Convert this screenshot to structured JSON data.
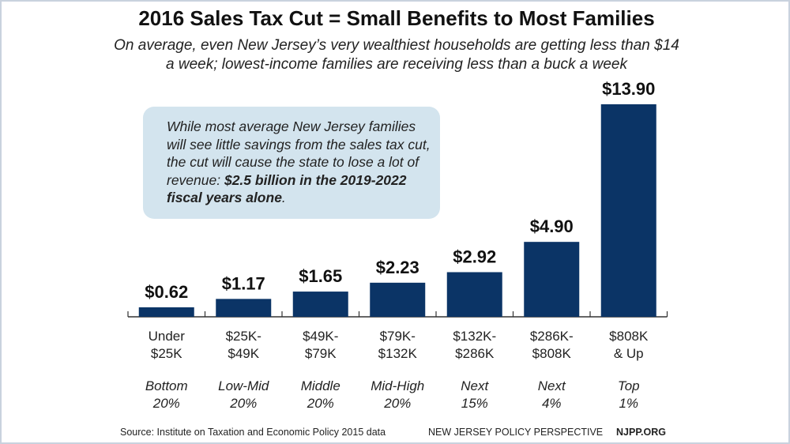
{
  "chart_data": {
    "type": "bar",
    "title": "2016 Sales Tax Cut = Small Benefits to Most Families",
    "subtitle": "On average, even New Jersey’s very wealthiest households are getting less than $14 a week; lowest-income families are receiving less than a buck a week",
    "categories": [
      [
        "Under",
        "$25K"
      ],
      [
        "$25K-",
        "$49K"
      ],
      [
        "$49K-",
        "$79K"
      ],
      [
        "$79K-",
        "$132K"
      ],
      [
        "$132K-",
        "$286K"
      ],
      [
        "$286K-",
        "$808K"
      ],
      [
        "$808K",
        "& Up"
      ]
    ],
    "groups": [
      [
        "Bottom",
        "20%"
      ],
      [
        "Low-Mid",
        "20%"
      ],
      [
        "Middle",
        "20%"
      ],
      [
        "Mid-High",
        "20%"
      ],
      [
        "Next",
        "15%"
      ],
      [
        "Next",
        "4%"
      ],
      [
        "Top",
        "1%"
      ]
    ],
    "values": [
      0.62,
      1.17,
      1.65,
      2.23,
      2.92,
      4.9,
      13.9
    ],
    "data_labels": [
      "$0.62",
      "$1.17",
      "$1.65",
      "$2.23",
      "$2.92",
      "$4.90",
      "$13.90"
    ],
    "ylim": [
      0,
      13.9
    ],
    "grid": false,
    "bar_color": "#0b3466",
    "xlabel": "",
    "ylabel": ""
  },
  "callout": {
    "text": "While most average New Jersey families will see little savings from the sales tax cut, the cut will cause the state to lose a lot of revenue: ",
    "bold": "$2.5 billion in the 2019-2022 fiscal years alone",
    "end": "."
  },
  "footer": {
    "source": "Source: Institute on Taxation and Economic Policy 2015 data",
    "org": "NEW JERSEY POLICY PERSPECTIVE",
    "url": "NJPP.ORG"
  }
}
